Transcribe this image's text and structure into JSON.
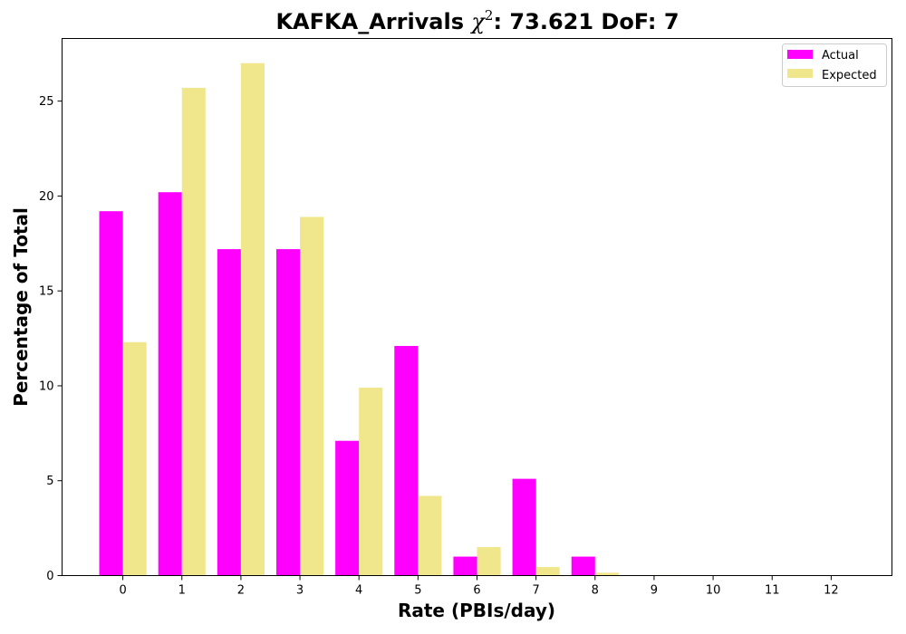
{
  "chart_data": {
    "type": "bar",
    "title_prefix": "KAFKA_Arrivals ",
    "title_chi_symbol": "χ",
    "title_chi_exponent": "2",
    "title_suffix": ": 73.621 DoF: 7",
    "xlabel": "Rate (PBIs/day)",
    "ylabel": "Percentage of Total",
    "categories": [
      "0",
      "1",
      "2",
      "3",
      "4",
      "5",
      "6",
      "7",
      "8",
      "9",
      "10",
      "11",
      "12"
    ],
    "x_range": [
      -1.03,
      13.03
    ],
    "ylim": [
      0,
      28.3
    ],
    "y_ticks": [
      0,
      5,
      10,
      15,
      20,
      25
    ],
    "grid": false,
    "legend_position": "top-right",
    "series": [
      {
        "name": "Actual",
        "color": "#ff00ff",
        "values": [
          19.2,
          20.2,
          17.2,
          17.2,
          7.1,
          12.1,
          1.0,
          5.1,
          1.0,
          0,
          0,
          0,
          0
        ]
      },
      {
        "name": "Expected",
        "color": "#f0e68c",
        "values": [
          12.3,
          25.7,
          27.0,
          18.9,
          9.9,
          4.2,
          1.5,
          0.45,
          0.15,
          0.03,
          0,
          0,
          0
        ]
      }
    ]
  }
}
